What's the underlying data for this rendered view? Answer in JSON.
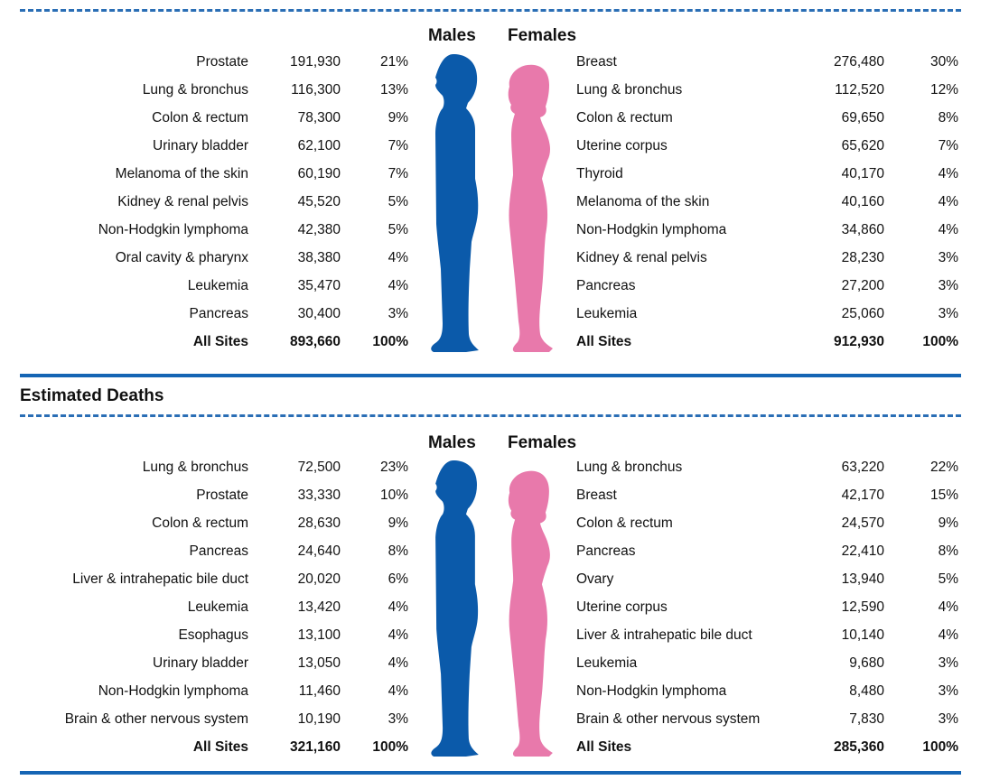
{
  "colors": {
    "male": "#0b5aaa",
    "female": "#e879ab",
    "rule": "#1565b4"
  },
  "labels": {
    "males": "Males",
    "females": "Females"
  },
  "chart_data": [
    {
      "type": "table",
      "title": "",
      "males": [
        {
          "site": "Prostate",
          "count": "191,930",
          "pct": "21%"
        },
        {
          "site": "Lung & bronchus",
          "count": "116,300",
          "pct": "13%"
        },
        {
          "site": "Colon & rectum",
          "count": "78,300",
          "pct": "9%"
        },
        {
          "site": "Urinary bladder",
          "count": "62,100",
          "pct": "7%"
        },
        {
          "site": "Melanoma of the skin",
          "count": "60,190",
          "pct": "7%"
        },
        {
          "site": "Kidney & renal pelvis",
          "count": "45,520",
          "pct": "5%"
        },
        {
          "site": "Non-Hodgkin lymphoma",
          "count": "42,380",
          "pct": "5%"
        },
        {
          "site": "Oral cavity & pharynx",
          "count": "38,380",
          "pct": "4%"
        },
        {
          "site": "Leukemia",
          "count": "35,470",
          "pct": "4%"
        },
        {
          "site": "Pancreas",
          "count": "30,400",
          "pct": "3%"
        }
      ],
      "males_total": {
        "site": "All Sites",
        "count": "893,660",
        "pct": "100%"
      },
      "females": [
        {
          "site": "Breast",
          "count": "276,480",
          "pct": "30%"
        },
        {
          "site": "Lung & bronchus",
          "count": "112,520",
          "pct": "12%"
        },
        {
          "site": "Colon & rectum",
          "count": "69,650",
          "pct": "8%"
        },
        {
          "site": "Uterine corpus",
          "count": "65,620",
          "pct": "7%"
        },
        {
          "site": "Thyroid",
          "count": "40,170",
          "pct": "4%"
        },
        {
          "site": "Melanoma of the skin",
          "count": "40,160",
          "pct": "4%"
        },
        {
          "site": "Non-Hodgkin lymphoma",
          "count": "34,860",
          "pct": "4%"
        },
        {
          "site": "Kidney & renal pelvis",
          "count": "28,230",
          "pct": "3%"
        },
        {
          "site": "Pancreas",
          "count": "27,200",
          "pct": "3%"
        },
        {
          "site": "Leukemia",
          "count": "25,060",
          "pct": "3%"
        }
      ],
      "females_total": {
        "site": "All Sites",
        "count": "912,930",
        "pct": "100%"
      }
    },
    {
      "type": "table",
      "title": "Estimated Deaths",
      "males": [
        {
          "site": "Lung & bronchus",
          "count": "72,500",
          "pct": "23%"
        },
        {
          "site": "Prostate",
          "count": "33,330",
          "pct": "10%"
        },
        {
          "site": "Colon & rectum",
          "count": "28,630",
          "pct": "9%"
        },
        {
          "site": "Pancreas",
          "count": "24,640",
          "pct": "8%"
        },
        {
          "site": "Liver & intrahepatic bile duct",
          "count": "20,020",
          "pct": "6%"
        },
        {
          "site": "Leukemia",
          "count": "13,420",
          "pct": "4%"
        },
        {
          "site": "Esophagus",
          "count": "13,100",
          "pct": "4%"
        },
        {
          "site": "Urinary bladder",
          "count": "13,050",
          "pct": "4%"
        },
        {
          "site": "Non-Hodgkin lymphoma",
          "count": "11,460",
          "pct": "4%"
        },
        {
          "site": "Brain & other nervous system",
          "count": "10,190",
          "pct": "3%"
        }
      ],
      "males_total": {
        "site": "All Sites",
        "count": "321,160",
        "pct": "100%"
      },
      "females": [
        {
          "site": "Lung & bronchus",
          "count": "63,220",
          "pct": "22%"
        },
        {
          "site": "Breast",
          "count": "42,170",
          "pct": "15%"
        },
        {
          "site": "Colon & rectum",
          "count": "24,570",
          "pct": "9%"
        },
        {
          "site": "Pancreas",
          "count": "22,410",
          "pct": "8%"
        },
        {
          "site": "Ovary",
          "count": "13,940",
          "pct": "5%"
        },
        {
          "site": "Uterine corpus",
          "count": "12,590",
          "pct": "4%"
        },
        {
          "site": "Liver & intrahepatic bile duct",
          "count": "10,140",
          "pct": "4%"
        },
        {
          "site": "Leukemia",
          "count": "9,680",
          "pct": "3%"
        },
        {
          "site": "Non-Hodgkin lymphoma",
          "count": "8,480",
          "pct": "3%"
        },
        {
          "site": "Brain & other nervous system",
          "count": "7,830",
          "pct": "3%"
        }
      ],
      "females_total": {
        "site": "All Sites",
        "count": "285,360",
        "pct": "100%"
      }
    }
  ]
}
